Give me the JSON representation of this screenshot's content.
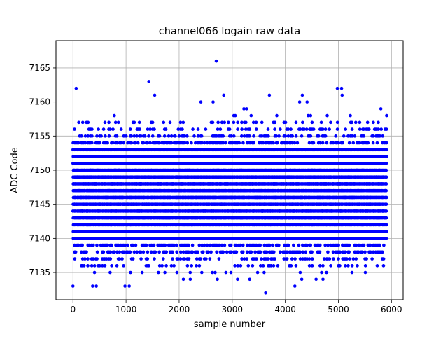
{
  "chart_data": {
    "type": "scatter",
    "title": "channel066 logain raw data",
    "xlabel": "sample number",
    "ylabel": "ADC Code",
    "xlim": [
      -320,
      6220
    ],
    "ylim": [
      7131,
      7169
    ],
    "x_ticks": [
      0,
      1000,
      2000,
      3000,
      4000,
      5000,
      6000
    ],
    "x_tick_labels": [
      "0",
      "1000",
      "2000",
      "3000",
      "4000",
      "5000",
      "6000"
    ],
    "y_ticks": [
      7135,
      7140,
      7145,
      7150,
      7155,
      7160,
      7165
    ],
    "y_tick_labels": [
      "7135",
      "7140",
      "7145",
      "7150",
      "7155",
      "7160",
      "7165"
    ],
    "grid": true,
    "marker_color": "#0000ff",
    "n_samples": 5900,
    "x_range": [
      0,
      5900
    ],
    "dense_band": [
      7136,
      7157
    ],
    "series": [
      {
        "points": [
          [
            60,
            7162
          ],
          [
            1430,
            7163
          ],
          [
            1540,
            7161
          ],
          [
            2700,
            7166
          ],
          [
            2840,
            7161
          ],
          [
            2410,
            7160
          ],
          [
            2640,
            7160
          ],
          [
            3700,
            7161
          ],
          [
            4270,
            7160
          ],
          [
            4410,
            7160
          ],
          [
            4320,
            7161
          ],
          [
            4980,
            7162
          ],
          [
            5060,
            7162
          ],
          [
            5070,
            7161
          ],
          [
            5800,
            7159
          ],
          [
            4790,
            7158
          ],
          [
            3840,
            7158
          ],
          [
            3220,
            7159
          ],
          [
            3270,
            7159
          ],
          [
            0,
            7133
          ],
          [
            370,
            7133
          ],
          [
            440,
            7133
          ],
          [
            980,
            7133
          ],
          [
            1060,
            7133
          ],
          [
            3630,
            7132
          ],
          [
            4180,
            7133
          ],
          [
            4310,
            7134
          ],
          [
            4580,
            7134
          ],
          [
            4710,
            7134
          ],
          [
            2720,
            7134
          ],
          [
            2080,
            7134
          ],
          [
            2210,
            7134
          ],
          [
            3100,
            7134
          ],
          [
            3330,
            7134
          ]
        ]
      }
    ]
  }
}
